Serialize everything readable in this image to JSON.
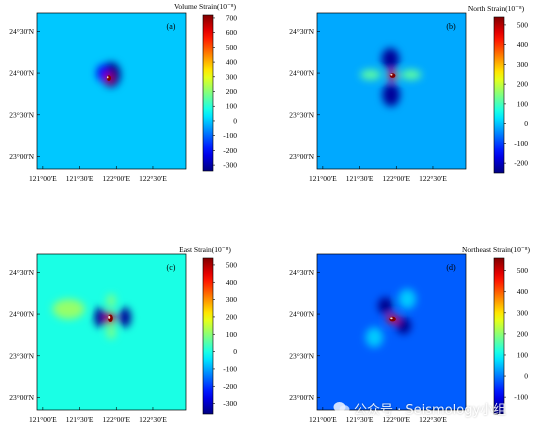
{
  "chart_data": [
    {
      "type": "heatmap",
      "panel_label": "(a)",
      "colorbar_title": "Volume Strain(10⁻⁸)",
      "colorbar_ticks": [
        700,
        600,
        500,
        400,
        300,
        200,
        100,
        0,
        -100,
        -200,
        -300
      ],
      "colorbar_range": [
        -340,
        720
      ],
      "background_value": 0,
      "x_ticks": [
        "121°00'E",
        "121°30'E",
        "122°00'E",
        "122°30'E"
      ],
      "y_ticks": [
        "24°30'N",
        "24°00'N",
        "23°30'N",
        "23°00'N"
      ],
      "x_tick_values": [
        121.0,
        121.5,
        122.0,
        122.5
      ],
      "y_tick_values": [
        24.5,
        24.0,
        23.5,
        23.0
      ],
      "xlim": [
        120.92,
        122.95
      ],
      "ylim": [
        22.85,
        24.72
      ],
      "features": [
        {
          "kind": "lobe",
          "lon": 121.93,
          "lat": 23.98,
          "rx": 0.13,
          "ry": 0.15,
          "value": -330
        },
        {
          "kind": "lobe",
          "lon": 121.82,
          "lat": 24.0,
          "rx": 0.09,
          "ry": 0.1,
          "value": -220
        },
        {
          "kind": "lobe",
          "lon": 121.9,
          "lat": 23.94,
          "rx": 0.05,
          "ry": 0.06,
          "value": 650
        }
      ]
    },
    {
      "type": "heatmap",
      "panel_label": "(b)",
      "colorbar_title": "North Strain(10⁻⁸)",
      "colorbar_ticks": [
        500,
        400,
        300,
        200,
        100,
        0,
        -100,
        -200
      ],
      "colorbar_range": [
        -250,
        540
      ],
      "background_value": -20,
      "x_ticks": [
        "121°00'E",
        "121°30'E",
        "122°00'E",
        "122°30'E"
      ],
      "y_ticks": [
        "24°30'N",
        "24°00'N",
        "23°30'N",
        "23°00'N"
      ],
      "x_tick_values": [
        121.0,
        121.5,
        122.0,
        122.5
      ],
      "y_tick_values": [
        24.5,
        24.0,
        23.5,
        23.0
      ],
      "xlim": [
        120.92,
        122.95
      ],
      "ylim": [
        22.85,
        24.72
      ],
      "features": [
        {
          "kind": "lobe",
          "lon": 121.92,
          "lat": 24.17,
          "rx": 0.12,
          "ry": 0.13,
          "value": -230
        },
        {
          "kind": "lobe",
          "lon": 121.93,
          "lat": 23.74,
          "rx": 0.12,
          "ry": 0.14,
          "value": -230
        },
        {
          "kind": "lobe",
          "lon": 121.65,
          "lat": 23.98,
          "rx": 0.14,
          "ry": 0.06,
          "value": 120
        },
        {
          "kind": "lobe",
          "lon": 122.2,
          "lat": 23.98,
          "rx": 0.14,
          "ry": 0.06,
          "value": 120
        },
        {
          "kind": "lobe",
          "lon": 121.95,
          "lat": 23.97,
          "rx": 0.07,
          "ry": 0.05,
          "value": 450
        }
      ]
    },
    {
      "type": "heatmap",
      "panel_label": "(c)",
      "colorbar_title": "East Strain(10⁻⁸)",
      "colorbar_ticks": [
        500,
        400,
        300,
        200,
        100,
        0,
        -100,
        -200,
        -300
      ],
      "colorbar_range": [
        -360,
        540
      ],
      "background_value": 0,
      "x_ticks": [
        "121°00'E",
        "121°30'E",
        "122°00'E",
        "122°30'E"
      ],
      "y_ticks": [
        "24°30'N",
        "24°00'N",
        "23°30'N",
        "23°00'N"
      ],
      "x_tick_values": [
        121.0,
        121.5,
        122.0,
        122.5
      ],
      "y_tick_values": [
        24.5,
        24.0,
        23.5,
        23.0
      ],
      "xlim": [
        120.92,
        122.95
      ],
      "ylim": [
        22.85,
        24.72
      ],
      "features": [
        {
          "kind": "lobe",
          "lon": 121.78,
          "lat": 23.96,
          "rx": 0.08,
          "ry": 0.12,
          "value": -340
        },
        {
          "kind": "lobe",
          "lon": 122.12,
          "lat": 23.96,
          "rx": 0.08,
          "ry": 0.12,
          "value": -340
        },
        {
          "kind": "lobe",
          "lon": 121.35,
          "lat": 24.06,
          "rx": 0.22,
          "ry": 0.12,
          "value": 110
        },
        {
          "kind": "lobe",
          "lon": 121.93,
          "lat": 24.16,
          "rx": 0.06,
          "ry": 0.08,
          "value": 90
        },
        {
          "kind": "lobe",
          "lon": 121.93,
          "lat": 23.78,
          "rx": 0.06,
          "ry": 0.08,
          "value": 90
        },
        {
          "kind": "lobe",
          "lon": 121.92,
          "lat": 23.95,
          "rx": 0.06,
          "ry": 0.08,
          "value": 470
        }
      ]
    },
    {
      "type": "heatmap",
      "panel_label": "(d)",
      "colorbar_title": "Northeast Strain(10⁻⁸)",
      "colorbar_ticks": [
        500,
        400,
        300,
        200,
        100,
        0,
        -100
      ],
      "colorbar_range": [
        -180,
        560
      ],
      "background_value": -20,
      "x_ticks": [
        "121°00'E",
        "121°30'E",
        "122°00'E",
        "122°30'E"
      ],
      "y_ticks": [
        "24°30'N",
        "24°00'N",
        "23°30'N",
        "23°00'N"
      ],
      "x_tick_values": [
        121.0,
        121.5,
        122.0,
        122.5
      ],
      "y_tick_values": [
        24.5,
        24.0,
        23.5,
        23.0
      ],
      "xlim": [
        120.92,
        122.95
      ],
      "ylim": [
        22.85,
        24.72
      ],
      "features": [
        {
          "kind": "lobe",
          "lon": 121.85,
          "lat": 24.1,
          "rx": 0.1,
          "ry": 0.1,
          "value": -170
        },
        {
          "kind": "lobe",
          "lon": 122.1,
          "lat": 23.86,
          "rx": 0.1,
          "ry": 0.1,
          "value": -170
        },
        {
          "kind": "lobe",
          "lon": 121.7,
          "lat": 23.72,
          "rx": 0.12,
          "ry": 0.12,
          "value": 60
        },
        {
          "kind": "lobe",
          "lon": 122.15,
          "lat": 24.18,
          "rx": 0.12,
          "ry": 0.12,
          "value": 60
        },
        {
          "kind": "lobe",
          "lon": 121.95,
          "lat": 23.94,
          "rx": 0.08,
          "ry": 0.05,
          "value": 480
        }
      ]
    }
  ],
  "watermark": {
    "text": "公众号 · Seismology小组"
  }
}
